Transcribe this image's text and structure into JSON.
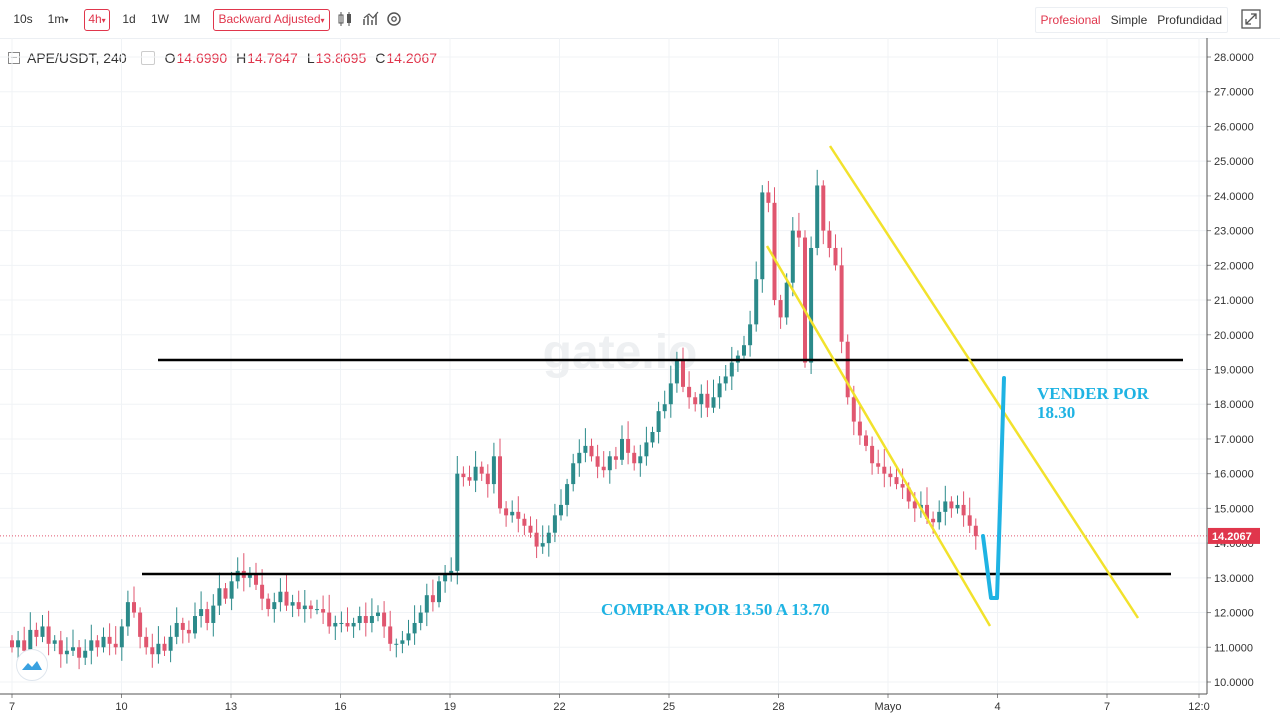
{
  "toolbar": {
    "intervals": [
      "10s",
      "1m",
      "4h",
      "1d",
      "1W",
      "1M"
    ],
    "active_interval": "4h",
    "adjust_label": "Backward Adjusted",
    "modes": [
      "Profesional",
      "Simple",
      "Profundidad"
    ],
    "active_mode": "Profesional"
  },
  "icons": [
    "candle-type-icon",
    "indicators-icon",
    "settings-icon",
    "fullscreen-icon",
    "gate-logo-icon"
  ],
  "colors": {
    "up": "#2b8a8a",
    "down": "#e0566f",
    "channel": "#f2e22c",
    "annotation": "#1fb3e3",
    "level": "#000000",
    "accent": "#e0364c"
  },
  "legend": {
    "symbol": "APE/USDT, 240",
    "o_label": "O",
    "o_value": "14.6990",
    "h_label": "H",
    "h_value": "14.7847",
    "l_label": "L",
    "l_value": "13.8695",
    "c_label": "C",
    "c_value": "14.2067"
  },
  "watermark": "gate.io",
  "annotations": {
    "sell_line1": "VENDER POR",
    "sell_line2": "18.30",
    "buy": "COMPRAR POR 13.50 A 13.70"
  },
  "chart_data": {
    "type": "candlestick",
    "pair": "APE/USDT",
    "interval": "240",
    "x_ticks": [
      "7",
      "10",
      "13",
      "16",
      "19",
      "22",
      "25",
      "28",
      "Mayo",
      "4",
      "7",
      "12:0"
    ],
    "y_ticks": [
      "28.0000",
      "27.0000",
      "26.0000",
      "25.0000",
      "24.0000",
      "23.0000",
      "22.0000",
      "21.0000",
      "20.0000",
      "19.0000",
      "18.0000",
      "17.0000",
      "16.0000",
      "15.0000",
      "14.0000",
      "13.0000",
      "12.0000",
      "11.0000",
      "10.0000"
    ],
    "ylim": [
      9.7,
      28.4
    ],
    "current_price": "14.2067",
    "closes": [
      11.0,
      11.2,
      10.9,
      11.5,
      11.3,
      11.6,
      11.1,
      11.2,
      10.8,
      10.9,
      11.0,
      10.7,
      10.9,
      11.2,
      11.0,
      11.3,
      11.1,
      11.0,
      11.6,
      12.3,
      12.0,
      11.3,
      11.0,
      10.8,
      11.1,
      10.9,
      11.3,
      11.7,
      11.5,
      11.4,
      11.9,
      12.1,
      11.7,
      12.2,
      12.7,
      12.4,
      12.9,
      13.2,
      13.0,
      13.1,
      12.8,
      12.4,
      12.1,
      12.3,
      12.6,
      12.2,
      12.3,
      12.1,
      12.2,
      12.1,
      12.1,
      12.0,
      11.6,
      11.7,
      11.7,
      11.6,
      11.7,
      11.9,
      11.7,
      11.9,
      12.0,
      11.6,
      11.1,
      11.1,
      11.2,
      11.4,
      11.7,
      12.0,
      12.5,
      12.3,
      12.9,
      13.1,
      13.2,
      16.0,
      15.9,
      15.8,
      16.2,
      16.0,
      15.7,
      16.5,
      15.0,
      14.8,
      14.9,
      14.7,
      14.5,
      14.3,
      13.9,
      14.0,
      14.3,
      14.8,
      15.1,
      15.7,
      16.3,
      16.6,
      16.8,
      16.5,
      16.2,
      16.1,
      16.5,
      16.4,
      17.0,
      16.6,
      16.3,
      16.5,
      16.9,
      17.2,
      17.8,
      18.0,
      18.6,
      19.3,
      18.5,
      18.2,
      18.0,
      18.3,
      17.9,
      18.2,
      18.6,
      18.8,
      19.2,
      19.4,
      19.7,
      20.3,
      21.6,
      24.1,
      23.8,
      21.0,
      20.5,
      21.5,
      23.0,
      22.8,
      19.2,
      22.5,
      24.3,
      23.0,
      22.5,
      22.0,
      19.8,
      18.2,
      17.5,
      17.1,
      16.8,
      16.3,
      16.2,
      16.0,
      15.9,
      15.7,
      15.6,
      15.2,
      15.0,
      15.1,
      14.7,
      14.6,
      14.9,
      15.2,
      15.0,
      15.1,
      14.8,
      14.5,
      14.2
    ]
  }
}
